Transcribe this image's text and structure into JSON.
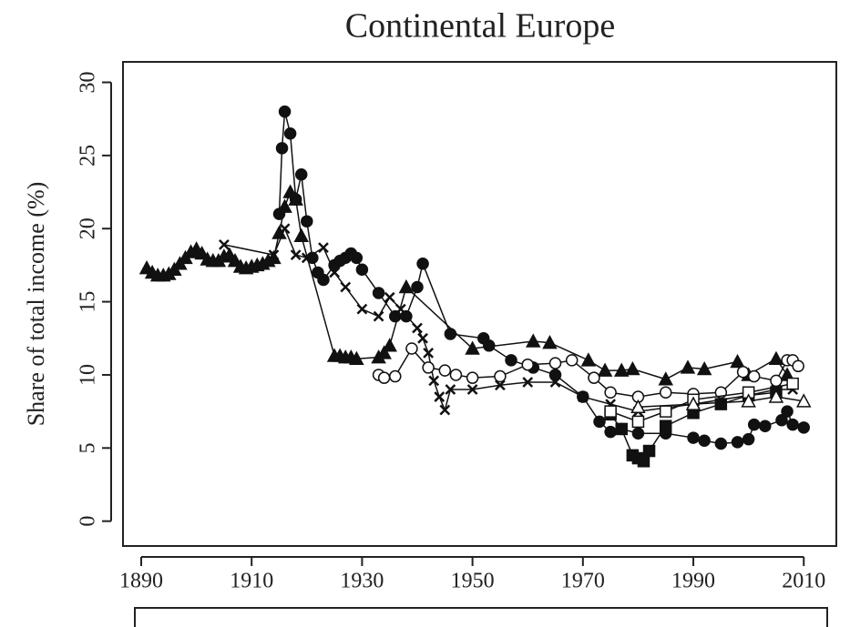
{
  "chart_data": {
    "type": "line",
    "title": "Continental Europe",
    "y_label": "Share of total income (%)",
    "xlim": [
      1886.7,
      2015.9
    ],
    "ylim": [
      -1.7,
      31.4
    ],
    "xticks": [
      1890,
      1910,
      1930,
      1950,
      1970,
      1990,
      2010
    ],
    "yticks": [
      0,
      5,
      10,
      15,
      20,
      25,
      30
    ],
    "series": [
      {
        "color": "#111111",
        "marker": "triangle",
        "x": [
          1891,
          1892,
          1893,
          1894,
          1895,
          1896,
          1897,
          1898,
          1899,
          1900,
          1901,
          1902,
          1903,
          1904,
          1905,
          1906,
          1907,
          1908,
          1909,
          1910,
          1911,
          1912,
          1913,
          1914,
          1915,
          1916,
          1917,
          1918,
          1919,
          1925,
          1926,
          1927,
          1928,
          1929,
          1933,
          1934,
          1935,
          1938,
          1950,
          1961,
          1964,
          1971,
          1974,
          1977,
          1979,
          1985,
          1989,
          1992,
          1998,
          2000,
          2005,
          2007
        ],
        "values": [
          17.3,
          17,
          16.8,
          16.8,
          16.9,
          17.2,
          17.6,
          18,
          18.4,
          18.6,
          18.3,
          17.9,
          17.8,
          17.8,
          18.1,
          18.2,
          17.8,
          17.4,
          17.3,
          17.4,
          17.5,
          17.6,
          17.8,
          18,
          19.7,
          21.5,
          22.5,
          22,
          19.5,
          11.3,
          11.3,
          11.2,
          11.2,
          11.1,
          11.2,
          11.5,
          12,
          16,
          11.8,
          12.3,
          12.2,
          11,
          10.3,
          10.3,
          10.4,
          9.7,
          10.5,
          10.4,
          10.9,
          10,
          11.1,
          10
        ]
      },
      {
        "color": "#111111",
        "marker": "circle",
        "x": [
          1915,
          1915.5,
          1916,
          1917,
          1918,
          1919,
          1920,
          1921,
          1922,
          1923,
          1925,
          1926,
          1927,
          1928,
          1929,
          1930,
          1933,
          1936,
          1938,
          1940,
          1941,
          1946,
          1952,
          1953,
          1957,
          1961,
          1965,
          1970,
          1973,
          1975,
          1977,
          1980,
          1985,
          1990,
          1992,
          1995,
          1998,
          2000,
          2001,
          2003,
          2006,
          2007,
          2008,
          2010
        ],
        "values": [
          21,
          25.5,
          28,
          26.5,
          22,
          23.7,
          20.5,
          18,
          17,
          16.5,
          17.5,
          17.8,
          18,
          18.3,
          18,
          17.2,
          15.6,
          14,
          14,
          16,
          17.6,
          12.8,
          12.5,
          12,
          11,
          10.5,
          10,
          8.5,
          6.8,
          6.1,
          6.3,
          6,
          6,
          5.7,
          5.5,
          5.3,
          5.4,
          5.6,
          6.6,
          6.5,
          6.9,
          7.5,
          6.6,
          6.4
        ]
      },
      {
        "color": "#111111",
        "marker": "cross",
        "x": [
          1905,
          1914,
          1916,
          1918,
          1920,
          1923,
          1925,
          1927,
          1930,
          1933,
          1935,
          1937,
          1940,
          1941,
          1942,
          1943,
          1944,
          1945,
          1946,
          1950,
          1955,
          1960,
          1965,
          1970,
          1975,
          1980,
          1990,
          2000,
          2005,
          2008
        ],
        "values": [
          18.9,
          18.2,
          20,
          18.2,
          18,
          18.7,
          17,
          16,
          14.5,
          14,
          15.3,
          14.5,
          13.2,
          12.5,
          11.5,
          9.6,
          8.5,
          7.6,
          9,
          9,
          9.3,
          9.5,
          9.5,
          8.5,
          8,
          7.5,
          8,
          8.6,
          9,
          9
        ]
      },
      {
        "color": "#111111",
        "marker": "open-circle",
        "x": [
          1933,
          1934,
          1936,
          1939,
          1942,
          1945,
          1947,
          1950,
          1955,
          1960,
          1965,
          1968,
          1972,
          1975,
          1980,
          1985,
          1990,
          1995,
          1999,
          2001,
          2005,
          2007,
          2008,
          2009
        ],
        "values": [
          10,
          9.8,
          9.9,
          11.8,
          10.5,
          10.3,
          10,
          9.8,
          9.9,
          10.7,
          10.8,
          11,
          9.8,
          8.8,
          8.5,
          8.8,
          8.7,
          8.8,
          10.2,
          9.9,
          9.6,
          11,
          11,
          10.6
        ]
      },
      {
        "color": "#111111",
        "marker": "square",
        "x": [
          1975,
          1977,
          1979,
          1980,
          1981,
          1982,
          1985,
          1990,
          1995,
          2000,
          2005
        ],
        "values": [
          7.3,
          6.3,
          4.5,
          4.3,
          4.1,
          4.8,
          6.5,
          7.4,
          8,
          8.6,
          8.8
        ]
      },
      {
        "color": "#111111",
        "marker": "open-square",
        "x": [
          1975,
          1980,
          1985,
          1990,
          2000,
          2008
        ],
        "values": [
          7.5,
          6.8,
          7.5,
          8.3,
          8.8,
          9.4
        ]
      },
      {
        "color": "#111111",
        "marker": "open-triangle",
        "x": [
          1980,
          1990,
          2000,
          2005,
          2010
        ],
        "values": [
          7.8,
          8,
          8.2,
          8.5,
          8.2
        ]
      }
    ]
  }
}
